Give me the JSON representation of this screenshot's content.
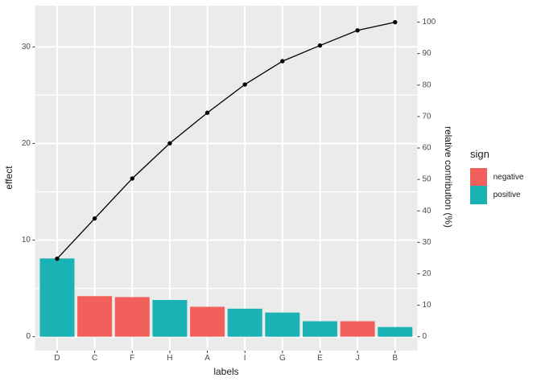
{
  "figure": {
    "background": "#FFFFFF",
    "panel_background": "#EBEBEB",
    "grid_color": "#FFFFFF",
    "tick_label_color": "#4D4D4D",
    "tick_mark_color": "#333333"
  },
  "chart_data": {
    "type": "bar",
    "subtype": "pareto",
    "title": "",
    "categories": [
      "D",
      "C",
      "F",
      "H",
      "A",
      "I",
      "G",
      "E",
      "J",
      "B"
    ],
    "series": [
      {
        "name": "effect",
        "render": "bar",
        "axis": "left",
        "values": [
          8.1,
          4.2,
          4.1,
          3.8,
          3.1,
          2.9,
          2.5,
          1.6,
          1.6,
          1.0
        ],
        "signs": [
          "positive",
          "negative",
          "negative",
          "positive",
          "negative",
          "positive",
          "positive",
          "positive",
          "negative",
          "positive"
        ]
      },
      {
        "name": "cumulative relative contribution (%)",
        "render": "line",
        "axis": "right",
        "values": [
          24.8,
          37.6,
          50.3,
          61.5,
          71.2,
          80.2,
          87.6,
          92.6,
          97.4,
          100
        ]
      }
    ],
    "xlabel": "labels",
    "ylabel_left": "effect",
    "ylabel_right": "relative contribution (%)",
    "y_left_breaks": [
      0,
      10,
      20,
      30
    ],
    "y_left_minor_breaks": [
      5,
      15,
      25
    ],
    "y_right_breaks": [
      0,
      10,
      20,
      30,
      40,
      50,
      60,
      70,
      80,
      90,
      100
    ],
    "ylim_left": [
      0,
      33.5
    ],
    "ylim_right": [
      0,
      104
    ],
    "grid": true,
    "legend_position": "right",
    "legend": {
      "title": "sign",
      "items": [
        {
          "label": "negative",
          "color": "#F2605C"
        },
        {
          "label": "positive",
          "color": "#1AB2B5"
        }
      ]
    },
    "line_color": "#000000",
    "point_color": "#000000"
  }
}
